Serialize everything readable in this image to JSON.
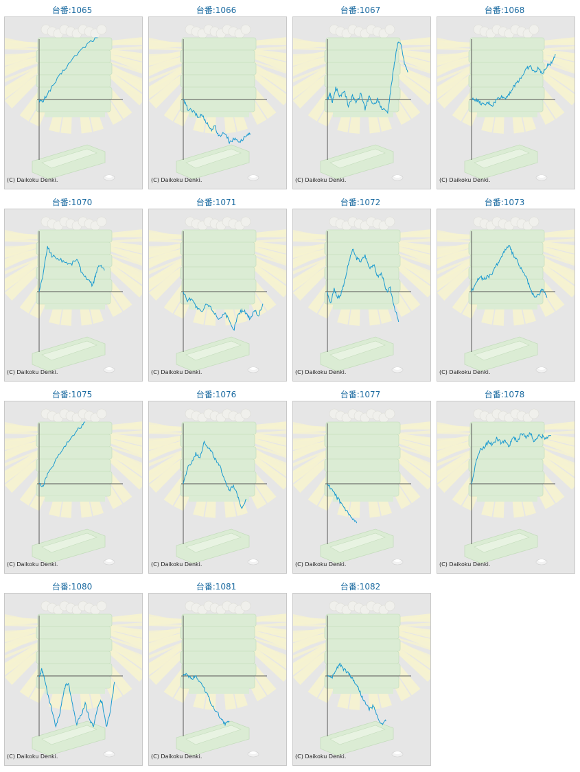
{
  "copyright": "(C) Daikoku Denki.",
  "colors": {
    "line": "#1a9ad0",
    "axis": "#555555",
    "title": "#1a6aa0",
    "panel": "#e6e6e6"
  },
  "chart_data": [
    {
      "type": "line",
      "title": "台番:1065",
      "shape": [
        [
          0,
          0
        ],
        [
          0.04,
          -0.05
        ],
        [
          0.1,
          0.1
        ],
        [
          0.2,
          0.3
        ],
        [
          0.3,
          0.5
        ],
        [
          0.45,
          0.75
        ],
        [
          0.6,
          0.95
        ],
        [
          0.7,
          1.03
        ]
      ]
    },
    {
      "type": "line",
      "title": "台番:1066",
      "shape": [
        [
          0,
          0
        ],
        [
          0.05,
          -0.15
        ],
        [
          0.12,
          -0.2
        ],
        [
          0.18,
          -0.3
        ],
        [
          0.22,
          -0.25
        ],
        [
          0.28,
          -0.38
        ],
        [
          0.33,
          -0.5
        ],
        [
          0.38,
          -0.45
        ],
        [
          0.42,
          -0.6
        ],
        [
          0.5,
          -0.55
        ],
        [
          0.55,
          -0.7
        ],
        [
          0.62,
          -0.65
        ],
        [
          0.68,
          -0.7
        ],
        [
          0.75,
          -0.6
        ],
        [
          0.8,
          -0.58
        ]
      ]
    },
    {
      "type": "line",
      "title": "台番:1067",
      "shape": [
        [
          0,
          0
        ],
        [
          0.03,
          0.1
        ],
        [
          0.06,
          -0.05
        ],
        [
          0.1,
          0.2
        ],
        [
          0.15,
          0.05
        ],
        [
          0.2,
          0.15
        ],
        [
          0.25,
          -0.1
        ],
        [
          0.3,
          0.05
        ],
        [
          0.35,
          -0.05
        ],
        [
          0.4,
          0.1
        ],
        [
          0.45,
          -0.15
        ],
        [
          0.5,
          0.05
        ],
        [
          0.55,
          -0.1
        ],
        [
          0.6,
          0.0
        ],
        [
          0.65,
          -0.15
        ],
        [
          0.72,
          -0.2
        ],
        [
          0.76,
          0.2
        ],
        [
          0.8,
          0.6
        ],
        [
          0.84,
          0.95
        ],
        [
          0.88,
          0.9
        ],
        [
          0.92,
          0.6
        ],
        [
          0.96,
          0.45
        ]
      ]
    },
    {
      "type": "line",
      "title": "台番:1068",
      "shape": [
        [
          0,
          0
        ],
        [
          0.05,
          0.0
        ],
        [
          0.1,
          -0.05
        ],
        [
          0.15,
          -0.1
        ],
        [
          0.2,
          -0.05
        ],
        [
          0.25,
          -0.1
        ],
        [
          0.3,
          0.0
        ],
        [
          0.35,
          0.05
        ],
        [
          0.4,
          0.02
        ],
        [
          0.45,
          0.1
        ],
        [
          0.5,
          0.2
        ],
        [
          0.55,
          0.3
        ],
        [
          0.6,
          0.38
        ],
        [
          0.65,
          0.5
        ],
        [
          0.7,
          0.55
        ],
        [
          0.75,
          0.45
        ],
        [
          0.8,
          0.52
        ],
        [
          0.85,
          0.42
        ],
        [
          0.9,
          0.55
        ],
        [
          0.95,
          0.6
        ],
        [
          1.0,
          0.75
        ]
      ]
    },
    {
      "type": "line",
      "title": "台番:1070",
      "shape": [
        [
          0,
          0
        ],
        [
          0.05,
          0.3
        ],
        [
          0.1,
          0.75
        ],
        [
          0.15,
          0.6
        ],
        [
          0.22,
          0.55
        ],
        [
          0.3,
          0.5
        ],
        [
          0.38,
          0.45
        ],
        [
          0.45,
          0.55
        ],
        [
          0.5,
          0.35
        ],
        [
          0.58,
          0.2
        ],
        [
          0.64,
          0.1
        ],
        [
          0.68,
          0.3
        ],
        [
          0.72,
          0.45
        ],
        [
          0.78,
          0.35
        ]
      ]
    },
    {
      "type": "line",
      "title": "台番:1071",
      "shape": [
        [
          0,
          0
        ],
        [
          0.05,
          -0.15
        ],
        [
          0.1,
          -0.1
        ],
        [
          0.15,
          -0.25
        ],
        [
          0.22,
          -0.35
        ],
        [
          0.28,
          -0.2
        ],
        [
          0.35,
          -0.3
        ],
        [
          0.42,
          -0.45
        ],
        [
          0.5,
          -0.35
        ],
        [
          0.55,
          -0.5
        ],
        [
          0.6,
          -0.65
        ],
        [
          0.65,
          -0.4
        ],
        [
          0.7,
          -0.3
        ],
        [
          0.75,
          -0.35
        ],
        [
          0.8,
          -0.45
        ],
        [
          0.85,
          -0.3
        ],
        [
          0.9,
          -0.4
        ],
        [
          0.95,
          -0.2
        ]
      ]
    },
    {
      "type": "line",
      "title": "台番:1072",
      "shape": [
        [
          0,
          0
        ],
        [
          0.04,
          -0.2
        ],
        [
          0.08,
          0.05
        ],
        [
          0.12,
          -0.1
        ],
        [
          0.16,
          -0.05
        ],
        [
          0.2,
          0.15
        ],
        [
          0.25,
          0.45
        ],
        [
          0.3,
          0.7
        ],
        [
          0.35,
          0.55
        ],
        [
          0.4,
          0.5
        ],
        [
          0.45,
          0.6
        ],
        [
          0.5,
          0.4
        ],
        [
          0.55,
          0.45
        ],
        [
          0.6,
          0.25
        ],
        [
          0.65,
          0.3
        ],
        [
          0.7,
          0.0
        ],
        [
          0.75,
          0.05
        ],
        [
          0.8,
          -0.25
        ],
        [
          0.85,
          -0.5
        ]
      ]
    },
    {
      "type": "line",
      "title": "台番:1073",
      "shape": [
        [
          0,
          0
        ],
        [
          0.05,
          0.15
        ],
        [
          0.1,
          0.25
        ],
        [
          0.15,
          0.2
        ],
        [
          0.2,
          0.25
        ],
        [
          0.25,
          0.3
        ],
        [
          0.3,
          0.45
        ],
        [
          0.35,
          0.55
        ],
        [
          0.4,
          0.7
        ],
        [
          0.45,
          0.75
        ],
        [
          0.5,
          0.6
        ],
        [
          0.55,
          0.5
        ],
        [
          0.6,
          0.35
        ],
        [
          0.65,
          0.25
        ],
        [
          0.7,
          0.05
        ],
        [
          0.75,
          -0.1
        ],
        [
          0.8,
          -0.05
        ],
        [
          0.85,
          0.05
        ],
        [
          0.9,
          -0.1
        ]
      ]
    },
    {
      "type": "line",
      "title": "台番:1075",
      "shape": [
        [
          0,
          0
        ],
        [
          0.04,
          -0.05
        ],
        [
          0.1,
          0.15
        ],
        [
          0.2,
          0.4
        ],
        [
          0.3,
          0.6
        ],
        [
          0.4,
          0.8
        ],
        [
          0.5,
          0.95
        ],
        [
          0.55,
          1.03
        ]
      ]
    },
    {
      "type": "line",
      "title": "台番:1076",
      "shape": [
        [
          0,
          0
        ],
        [
          0.05,
          0.25
        ],
        [
          0.1,
          0.35
        ],
        [
          0.15,
          0.5
        ],
        [
          0.2,
          0.45
        ],
        [
          0.25,
          0.7
        ],
        [
          0.3,
          0.6
        ],
        [
          0.35,
          0.5
        ],
        [
          0.4,
          0.35
        ],
        [
          0.45,
          0.25
        ],
        [
          0.5,
          0.05
        ],
        [
          0.55,
          -0.1
        ],
        [
          0.6,
          -0.05
        ],
        [
          0.65,
          -0.2
        ],
        [
          0.7,
          -0.4
        ],
        [
          0.75,
          -0.25
        ]
      ]
    },
    {
      "type": "line",
      "title": "台番:1077",
      "shape": [
        [
          0,
          0
        ],
        [
          0.05,
          -0.1
        ],
        [
          0.1,
          -0.2
        ],
        [
          0.15,
          -0.3
        ],
        [
          0.2,
          -0.4
        ],
        [
          0.25,
          -0.5
        ],
        [
          0.3,
          -0.6
        ],
        [
          0.35,
          -0.65
        ]
      ]
    },
    {
      "type": "line",
      "title": "台番:1078",
      "shape": [
        [
          0,
          0
        ],
        [
          0.05,
          0.35
        ],
        [
          0.1,
          0.55
        ],
        [
          0.15,
          0.6
        ],
        [
          0.2,
          0.7
        ],
        [
          0.25,
          0.65
        ],
        [
          0.3,
          0.75
        ],
        [
          0.35,
          0.68
        ],
        [
          0.4,
          0.72
        ],
        [
          0.45,
          0.62
        ],
        [
          0.5,
          0.78
        ],
        [
          0.55,
          0.7
        ],
        [
          0.6,
          0.85
        ],
        [
          0.65,
          0.75
        ],
        [
          0.7,
          0.85
        ],
        [
          0.75,
          0.7
        ],
        [
          0.8,
          0.8
        ],
        [
          0.85,
          0.78
        ],
        [
          0.9,
          0.75
        ],
        [
          0.95,
          0.8
        ]
      ]
    },
    {
      "type": "line",
      "title": "台番:1080",
      "shape": [
        [
          0,
          0
        ],
        [
          0.03,
          0.1
        ],
        [
          0.06,
          0.0
        ],
        [
          0.1,
          -0.3
        ],
        [
          0.15,
          -0.55
        ],
        [
          0.2,
          -0.85
        ],
        [
          0.25,
          -0.6
        ],
        [
          0.3,
          -0.2
        ],
        [
          0.35,
          -0.1
        ],
        [
          0.4,
          -0.5
        ],
        [
          0.45,
          -0.8
        ],
        [
          0.5,
          -0.65
        ],
        [
          0.55,
          -0.45
        ],
        [
          0.6,
          -0.7
        ],
        [
          0.65,
          -0.85
        ],
        [
          0.7,
          -0.5
        ],
        [
          0.75,
          -0.4
        ],
        [
          0.8,
          -0.85
        ],
        [
          0.85,
          -0.6
        ],
        [
          0.9,
          -0.1
        ]
      ]
    },
    {
      "type": "line",
      "title": "台番:1081",
      "shape": [
        [
          0,
          0
        ],
        [
          0.05,
          0.02
        ],
        [
          0.1,
          -0.05
        ],
        [
          0.15,
          0.0
        ],
        [
          0.2,
          -0.1
        ],
        [
          0.25,
          -0.2
        ],
        [
          0.3,
          -0.35
        ],
        [
          0.35,
          -0.5
        ],
        [
          0.4,
          -0.6
        ],
        [
          0.45,
          -0.7
        ],
        [
          0.5,
          -0.8
        ],
        [
          0.55,
          -0.75
        ]
      ]
    },
    {
      "type": "line",
      "title": "台番:1082",
      "shape": [
        [
          0,
          0
        ],
        [
          0.05,
          -0.05
        ],
        [
          0.1,
          0.1
        ],
        [
          0.15,
          0.2
        ],
        [
          0.2,
          0.1
        ],
        [
          0.25,
          0.05
        ],
        [
          0.3,
          -0.05
        ],
        [
          0.35,
          -0.15
        ],
        [
          0.4,
          -0.3
        ],
        [
          0.45,
          -0.45
        ],
        [
          0.5,
          -0.55
        ],
        [
          0.55,
          -0.5
        ],
        [
          0.6,
          -0.7
        ],
        [
          0.65,
          -0.8
        ],
        [
          0.7,
          -0.75
        ]
      ]
    }
  ]
}
